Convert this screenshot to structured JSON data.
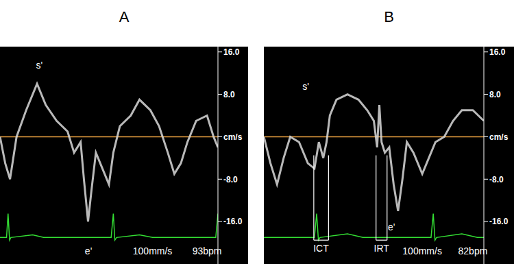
{
  "chart_data": [
    {
      "type": "line",
      "title": "A",
      "xlim": [
        0,
        100
      ],
      "ylim": [
        -24,
        17
      ],
      "yticks": [
        {
          "value": 16,
          "label": "16.0"
        },
        {
          "value": 8,
          "label": "8.0"
        },
        {
          "value": 0,
          "label": "cm/s"
        },
        {
          "value": -8,
          "label": "-8.0"
        },
        {
          "value": -16,
          "label": "-16.0"
        }
      ],
      "tick_labels": "y",
      "baseline": 0,
      "series": [
        {
          "color": "#d9d9d9",
          "x": [
            0,
            2.4,
            4.6,
            7.6,
            12,
            17,
            21,
            26,
            31,
            34,
            37,
            38.5,
            40.4,
            42,
            44,
            47,
            50,
            52,
            55,
            60,
            64,
            69,
            73,
            77,
            80,
            83,
            86,
            90,
            95,
            98,
            100
          ],
          "values": [
            0,
            -5,
            -8,
            0,
            5,
            10,
            6,
            3,
            1,
            -3,
            -1,
            -8,
            -16,
            -10,
            -3,
            -6,
            -9,
            -3,
            2,
            4,
            7,
            5,
            2,
            -3,
            -7,
            -5,
            -1,
            3,
            4,
            0,
            -2
          ]
        },
        {
          "color": "#33dd33",
          "x": [
            0,
            3,
            3.7,
            4.4,
            5,
            15,
            20,
            51,
            52,
            52.7,
            53.5,
            64,
            70,
            99,
            100
          ],
          "values": [
            -19,
            -19,
            -14.5,
            -19.5,
            -19,
            -18.5,
            -19,
            -19,
            -14.5,
            -19.5,
            -19,
            -18.5,
            -19,
            -19,
            -14.5
          ]
        }
      ],
      "annotations": [
        {
          "text": "s'",
          "x": 18,
          "y": 13.5
        },
        {
          "text": "e'",
          "x": 40.6,
          "y": -21.5
        },
        {
          "text": "100mm/s",
          "x": 70,
          "y": -21.5
        },
        {
          "text": "93bpm",
          "x": 95,
          "y": -21.5
        }
      ]
    },
    {
      "type": "line",
      "title": "B",
      "xlim": [
        0,
        100
      ],
      "ylim": [
        -24,
        17
      ],
      "yticks": [
        {
          "value": 16,
          "label": "16.0"
        },
        {
          "value": 8,
          "label": "8.0"
        },
        {
          "value": 0,
          "label": "cm/s"
        },
        {
          "value": -8,
          "label": "-8.0"
        },
        {
          "value": -16,
          "label": "-16.0"
        }
      ],
      "tick_labels": "y",
      "baseline": 0,
      "series": [
        {
          "color": "#d9d9d9",
          "x": [
            0,
            3,
            6,
            9,
            12,
            16,
            20,
            23,
            25,
            27,
            28.5,
            30,
            33,
            38,
            43,
            47,
            50,
            51.5,
            52.5,
            53.5,
            55,
            57,
            59,
            61,
            63,
            65,
            68,
            72,
            75,
            78,
            82,
            86,
            90,
            95,
            100
          ],
          "values": [
            0,
            -5,
            -9,
            -4,
            0,
            -1,
            -5,
            -6,
            -1,
            -4,
            -1,
            4,
            7,
            8,
            7,
            5,
            3,
            -2,
            6,
            -1,
            -3,
            -2,
            -9,
            -14,
            -8,
            -1,
            -3,
            -7,
            -4,
            -1,
            0,
            3,
            5,
            5,
            3
          ]
        },
        {
          "color": "#33dd33",
          "x": [
            0,
            23,
            24,
            24.8,
            25.5,
            38,
            45,
            76,
            77,
            77.8,
            78.5,
            90,
            97,
            100
          ],
          "values": [
            -19,
            -19,
            -14.5,
            -19.5,
            -19,
            -18.3,
            -19,
            -19,
            -14.5,
            -19.5,
            -19,
            -18.3,
            -19,
            -19
          ]
        }
      ],
      "annotations": [
        {
          "text": "s'",
          "x": 19,
          "y": 9.5
        },
        {
          "text": "e'",
          "x": 58,
          "y": -17
        },
        {
          "text": "ICT",
          "x": 26,
          "y": -21,
          "span": [
            22.7,
            29.4
          ],
          "span_top": -3.5
        },
        {
          "text": "IRT",
          "x": 53.5,
          "y": -21,
          "span": [
            51,
            56
          ],
          "span_top": -3.5
        },
        {
          "text": "100mm/s",
          "x": 72,
          "y": -21.5
        },
        {
          "text": "82bpm",
          "x": 95,
          "y": -21.5
        }
      ]
    }
  ]
}
